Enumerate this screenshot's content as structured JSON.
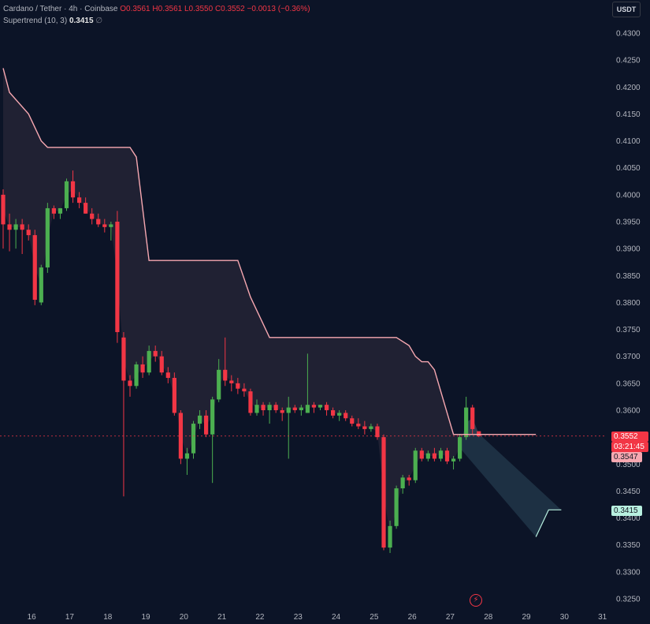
{
  "legend": {
    "symbol": "Cardano / Tether · 4h · Coinbase",
    "open": "O0.3561",
    "high": "H0.3561",
    "low": "L0.3550",
    "close": "C0.3552",
    "change": "−0.0013 (−0.36%)",
    "indicator_label": "Supertrend (10, 3)",
    "indicator_value": "0.3415",
    "eye_icon": "∅"
  },
  "currency": "USDT",
  "price_tags": {
    "last_price": "0.3552",
    "countdown": "03:21:45",
    "previous": "0.3547",
    "supertrend": "0.3415"
  },
  "colors": {
    "background": "#0c1427",
    "up": "#4caf50",
    "down": "#f23645",
    "supertrend_down": "#f7a8b1",
    "supertrend_up": "#b8f0e0"
  },
  "chart_data": {
    "type": "candlestick",
    "title": "Cardano / Tether · 4h · Coinbase",
    "ylim": [
      0.324,
      0.432
    ],
    "y_ticks": [
      0.325,
      0.33,
      0.335,
      0.34,
      0.345,
      0.35,
      0.355,
      0.36,
      0.365,
      0.37,
      0.375,
      0.38,
      0.385,
      0.39,
      0.395,
      0.4,
      0.405,
      0.41,
      0.415,
      0.42,
      0.425,
      0.43
    ],
    "x_ticks": [
      {
        "label": "16",
        "i": 3
      },
      {
        "label": "17",
        "i": 9
      },
      {
        "label": "18",
        "i": 15
      },
      {
        "label": "19",
        "i": 21
      },
      {
        "label": "20",
        "i": 27
      },
      {
        "label": "21",
        "i": 33
      },
      {
        "label": "22",
        "i": 39
      },
      {
        "label": "23",
        "i": 45
      },
      {
        "label": "24",
        "i": 51
      },
      {
        "label": "25",
        "i": 57
      },
      {
        "label": "26",
        "i": 63
      },
      {
        "label": "27",
        "i": 69
      },
      {
        "label": "28",
        "i": 75
      },
      {
        "label": "29",
        "i": 81
      },
      {
        "label": "30",
        "i": 87
      },
      {
        "label": "31",
        "i": 93
      }
    ],
    "candles": [
      {
        "o": 0.4,
        "h": 0.401,
        "l": 0.39,
        "c": 0.3945
      },
      {
        "o": 0.3945,
        "h": 0.3965,
        "l": 0.3895,
        "c": 0.3935
      },
      {
        "o": 0.3935,
        "h": 0.3955,
        "l": 0.39,
        "c": 0.3945
      },
      {
        "o": 0.3945,
        "h": 0.3955,
        "l": 0.389,
        "c": 0.3935
      },
      {
        "o": 0.3935,
        "h": 0.3945,
        "l": 0.3915,
        "c": 0.3925
      },
      {
        "o": 0.3925,
        "h": 0.3935,
        "l": 0.3795,
        "c": 0.3805
      },
      {
        "o": 0.38,
        "h": 0.387,
        "l": 0.3795,
        "c": 0.3865
      },
      {
        "o": 0.3865,
        "h": 0.3985,
        "l": 0.3855,
        "c": 0.3975
      },
      {
        "o": 0.3975,
        "h": 0.398,
        "l": 0.3955,
        "c": 0.3965
      },
      {
        "o": 0.3965,
        "h": 0.3975,
        "l": 0.3955,
        "c": 0.3975
      },
      {
        "o": 0.3975,
        "h": 0.403,
        "l": 0.397,
        "c": 0.4025
      },
      {
        "o": 0.4025,
        "h": 0.4045,
        "l": 0.3985,
        "c": 0.3995
      },
      {
        "o": 0.3995,
        "h": 0.4005,
        "l": 0.3975,
        "c": 0.3985
      },
      {
        "o": 0.3985,
        "h": 0.3995,
        "l": 0.3965,
        "c": 0.3965
      },
      {
        "o": 0.3965,
        "h": 0.3975,
        "l": 0.3945,
        "c": 0.3955
      },
      {
        "o": 0.3955,
        "h": 0.3965,
        "l": 0.394,
        "c": 0.3945
      },
      {
        "o": 0.3945,
        "h": 0.3955,
        "l": 0.393,
        "c": 0.394
      },
      {
        "o": 0.394,
        "h": 0.395,
        "l": 0.3915,
        "c": 0.3945
      },
      {
        "o": 0.395,
        "h": 0.397,
        "l": 0.3725,
        "c": 0.3745
      },
      {
        "o": 0.3735,
        "h": 0.3745,
        "l": 0.344,
        "c": 0.3655
      },
      {
        "o": 0.3655,
        "h": 0.3665,
        "l": 0.3625,
        "c": 0.3645
      },
      {
        "o": 0.3645,
        "h": 0.369,
        "l": 0.364,
        "c": 0.3685
      },
      {
        "o": 0.3685,
        "h": 0.37,
        "l": 0.366,
        "c": 0.367
      },
      {
        "o": 0.367,
        "h": 0.372,
        "l": 0.3665,
        "c": 0.371
      },
      {
        "o": 0.371,
        "h": 0.372,
        "l": 0.369,
        "c": 0.37
      },
      {
        "o": 0.37,
        "h": 0.371,
        "l": 0.3665,
        "c": 0.367
      },
      {
        "o": 0.367,
        "h": 0.368,
        "l": 0.365,
        "c": 0.366
      },
      {
        "o": 0.366,
        "h": 0.367,
        "l": 0.359,
        "c": 0.3595
      },
      {
        "o": 0.3595,
        "h": 0.36,
        "l": 0.35,
        "c": 0.351
      },
      {
        "o": 0.351,
        "h": 0.353,
        "l": 0.348,
        "c": 0.352
      },
      {
        "o": 0.352,
        "h": 0.358,
        "l": 0.351,
        "c": 0.3575
      },
      {
        "o": 0.3575,
        "h": 0.36,
        "l": 0.3565,
        "c": 0.359
      },
      {
        "o": 0.359,
        "h": 0.36,
        "l": 0.355,
        "c": 0.3555
      },
      {
        "o": 0.3555,
        "h": 0.3625,
        "l": 0.3465,
        "c": 0.362
      },
      {
        "o": 0.362,
        "h": 0.3695,
        "l": 0.3615,
        "c": 0.3675
      },
      {
        "o": 0.3675,
        "h": 0.3735,
        "l": 0.3645,
        "c": 0.3655
      },
      {
        "o": 0.3655,
        "h": 0.3665,
        "l": 0.3635,
        "c": 0.365
      },
      {
        "o": 0.365,
        "h": 0.366,
        "l": 0.363,
        "c": 0.364
      },
      {
        "o": 0.364,
        "h": 0.365,
        "l": 0.3625,
        "c": 0.3635
      },
      {
        "o": 0.3635,
        "h": 0.364,
        "l": 0.359,
        "c": 0.3595
      },
      {
        "o": 0.3595,
        "h": 0.362,
        "l": 0.359,
        "c": 0.361
      },
      {
        "o": 0.361,
        "h": 0.3615,
        "l": 0.359,
        "c": 0.36
      },
      {
        "o": 0.36,
        "h": 0.3615,
        "l": 0.3575,
        "c": 0.361
      },
      {
        "o": 0.361,
        "h": 0.3615,
        "l": 0.3595,
        "c": 0.36
      },
      {
        "o": 0.36,
        "h": 0.3605,
        "l": 0.358,
        "c": 0.3595
      },
      {
        "o": 0.3595,
        "h": 0.3625,
        "l": 0.351,
        "c": 0.3605
      },
      {
        "o": 0.3605,
        "h": 0.361,
        "l": 0.3595,
        "c": 0.36
      },
      {
        "o": 0.36,
        "h": 0.361,
        "l": 0.359,
        "c": 0.3605
      },
      {
        "o": 0.3595,
        "h": 0.3705,
        "l": 0.3595,
        "c": 0.361
      },
      {
        "o": 0.361,
        "h": 0.3615,
        "l": 0.3595,
        "c": 0.3605
      },
      {
        "o": 0.3605,
        "h": 0.361,
        "l": 0.36,
        "c": 0.361
      },
      {
        "o": 0.361,
        "h": 0.3615,
        "l": 0.359,
        "c": 0.36
      },
      {
        "o": 0.36,
        "h": 0.3605,
        "l": 0.3585,
        "c": 0.359
      },
      {
        "o": 0.359,
        "h": 0.36,
        "l": 0.358,
        "c": 0.3595
      },
      {
        "o": 0.3595,
        "h": 0.36,
        "l": 0.358,
        "c": 0.3585
      },
      {
        "o": 0.3585,
        "h": 0.359,
        "l": 0.357,
        "c": 0.3575
      },
      {
        "o": 0.3575,
        "h": 0.3585,
        "l": 0.3565,
        "c": 0.357
      },
      {
        "o": 0.357,
        "h": 0.358,
        "l": 0.3555,
        "c": 0.3565
      },
      {
        "o": 0.3565,
        "h": 0.3575,
        "l": 0.356,
        "c": 0.357
      },
      {
        "o": 0.357,
        "h": 0.3575,
        "l": 0.3545,
        "c": 0.355
      },
      {
        "o": 0.355,
        "h": 0.3555,
        "l": 0.334,
        "c": 0.3345
      },
      {
        "o": 0.3345,
        "h": 0.3395,
        "l": 0.3335,
        "c": 0.3385
      },
      {
        "o": 0.3385,
        "h": 0.346,
        "l": 0.338,
        "c": 0.3455
      },
      {
        "o": 0.3455,
        "h": 0.348,
        "l": 0.3445,
        "c": 0.3475
      },
      {
        "o": 0.3475,
        "h": 0.348,
        "l": 0.346,
        "c": 0.347
      },
      {
        "o": 0.347,
        "h": 0.353,
        "l": 0.3465,
        "c": 0.3525
      },
      {
        "o": 0.3525,
        "h": 0.353,
        "l": 0.3505,
        "c": 0.351
      },
      {
        "o": 0.351,
        "h": 0.3525,
        "l": 0.3505,
        "c": 0.352
      },
      {
        "o": 0.352,
        "h": 0.353,
        "l": 0.3505,
        "c": 0.351
      },
      {
        "o": 0.351,
        "h": 0.353,
        "l": 0.3505,
        "c": 0.3525
      },
      {
        "o": 0.3525,
        "h": 0.353,
        "l": 0.35,
        "c": 0.3505
      },
      {
        "o": 0.3505,
        "h": 0.3515,
        "l": 0.349,
        "c": 0.351
      },
      {
        "o": 0.351,
        "h": 0.3555,
        "l": 0.3505,
        "c": 0.355
      },
      {
        "o": 0.355,
        "h": 0.3625,
        "l": 0.3545,
        "c": 0.3605
      },
      {
        "o": 0.3605,
        "h": 0.361,
        "l": 0.3555,
        "c": 0.3565
      },
      {
        "o": 0.3561,
        "h": 0.3561,
        "l": 0.355,
        "c": 0.3552
      }
    ],
    "supertrend": [
      {
        "i": 0,
        "v": 0.4235
      },
      {
        "i": 1,
        "v": 0.419
      },
      {
        "i": 4,
        "v": 0.415
      },
      {
        "i": 6,
        "v": 0.41
      },
      {
        "i": 7,
        "v": 0.4088
      },
      {
        "i": 20,
        "v": 0.4088
      },
      {
        "i": 21,
        "v": 0.407
      },
      {
        "i": 23,
        "v": 0.3878
      },
      {
        "i": 37,
        "v": 0.3878
      },
      {
        "i": 39,
        "v": 0.381
      },
      {
        "i": 42,
        "v": 0.3735
      },
      {
        "i": 62,
        "v": 0.3735
      },
      {
        "i": 64,
        "v": 0.372
      },
      {
        "i": 65,
        "v": 0.37
      },
      {
        "i": 66,
        "v": 0.369
      },
      {
        "i": 67,
        "v": 0.369
      },
      {
        "i": 68,
        "v": 0.3675
      },
      {
        "i": 71,
        "v": 0.3555
      },
      {
        "i": 84,
        "v": 0.3555
      }
    ],
    "supertrend_up": [
      {
        "i": 84,
        "v": 0.3365
      },
      {
        "i": 86,
        "v": 0.3415
      },
      {
        "i": 88,
        "v": 0.3415
      }
    ]
  }
}
